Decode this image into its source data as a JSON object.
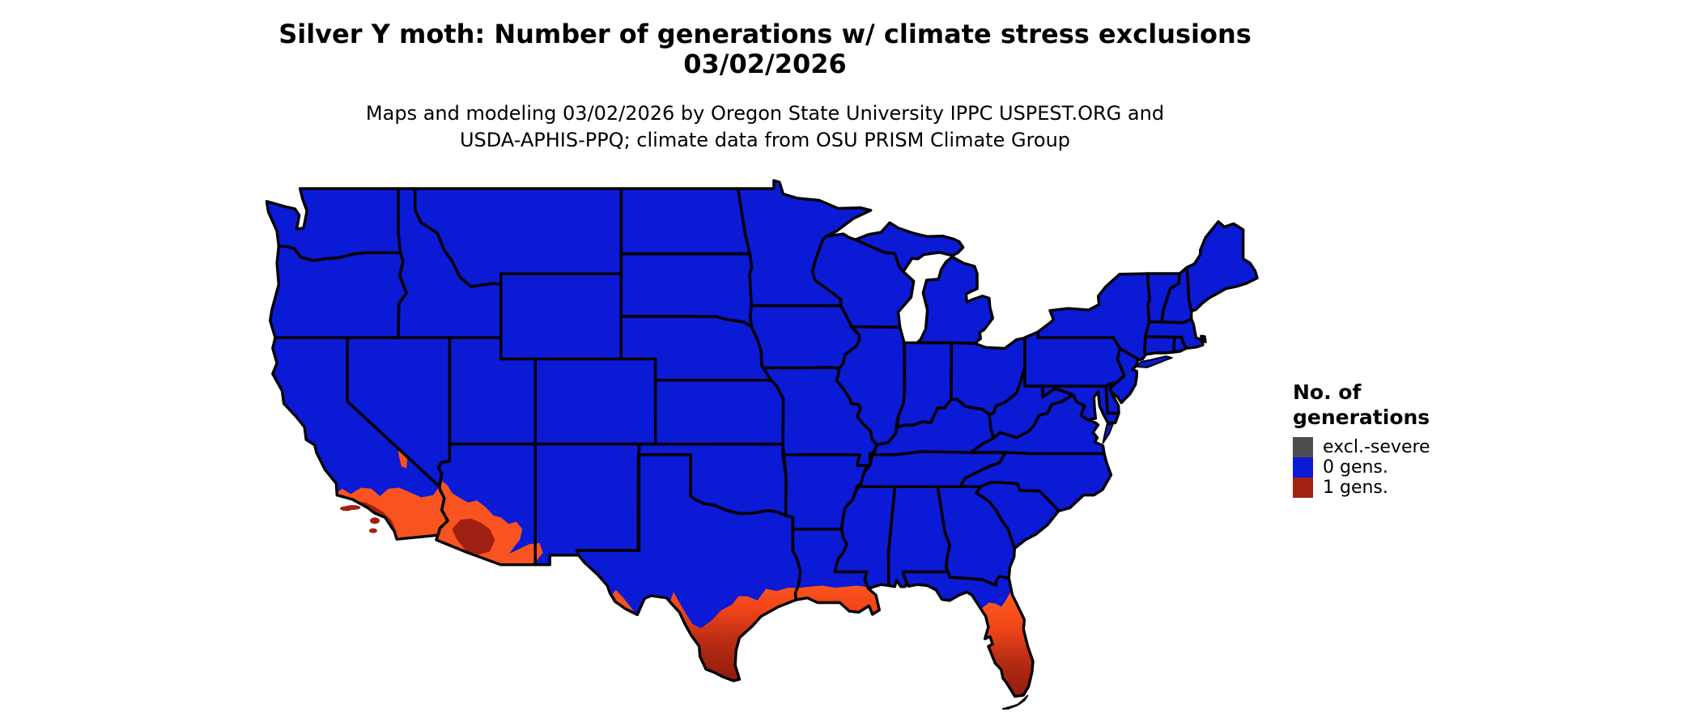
{
  "figure": {
    "title_line1": "Silver Y moth: Number of generations w/ climate stress exclusions",
    "title_line2": "03/02/2026",
    "subtitle_line1": "Maps and modeling 03/02/2026 by Oregon State University IPPC USPEST.ORG and",
    "subtitle_line2": "USDA-APHIS-PPQ; climate data from OSU PRISM Climate Group"
  },
  "legend": {
    "title_line1": "No. of",
    "title_line2": "generations",
    "items": [
      {
        "id": "excl-severe",
        "label": "excl.-severe",
        "color": "#4D4D4D"
      },
      {
        "id": "zero-gens",
        "label": "0 gens.",
        "color": "#0B1AD4"
      },
      {
        "id": "one-gen",
        "label": "1 gens.",
        "color": "#A32113"
      }
    ]
  },
  "map": {
    "background_color": "#FFFFFF",
    "state_border_color": "#000000",
    "zero_gens_fill": "#0B1AD4",
    "one_gen_gradient": [
      "#FF5A1E",
      "#F1451A",
      "#B62B13",
      "#8C1B0E"
    ],
    "one_gen_base": "#F85320",
    "one_gen_dark_ca_coast": "#A32113",
    "one_gen_dark_az_core": "#9E2012",
    "one_gen_orange_patch": "#F4511E",
    "one_generation_areas": [
      "southern California coast",
      "southwestern Arizona deserts",
      "lower Colorado River valley",
      "Death Valley region",
      "Big Bend of Texas",
      "southern Texas",
      "Texas-Louisiana Gulf Coast",
      "central and southern Florida",
      "Florida Keys"
    ]
  }
}
